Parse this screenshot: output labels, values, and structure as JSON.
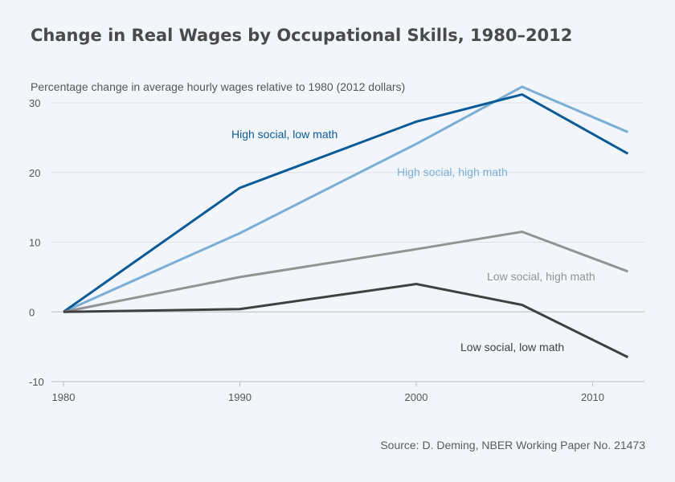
{
  "chart_data": {
    "type": "line",
    "title": "Change in Real Wages by Occupational Skills, 1980–2012",
    "ylabel": "Percentage change in average hourly wages relative to 1980 (2012 dollars)",
    "xlabel": "",
    "source": "Source: D. Deming, NBER Working Paper No. 21473",
    "x": [
      1980,
      1990,
      2000,
      2006,
      2012
    ],
    "xlim": [
      1980,
      2013
    ],
    "ylim": [
      -10,
      30
    ],
    "xticks": [
      1980,
      1990,
      2000,
      2010
    ],
    "yticks": [
      -10,
      0,
      10,
      20,
      30
    ],
    "grid": true,
    "series": [
      {
        "name": "High social, high math",
        "values": [
          0,
          11.3,
          24.1,
          32.3,
          25.8
        ],
        "color": "#7aaed4"
      },
      {
        "name": "High social, low math",
        "values": [
          0,
          17.8,
          27.3,
          31.2,
          22.7
        ],
        "color": "#0b5a98"
      },
      {
        "name": "Low social, high math",
        "values": [
          0,
          5.0,
          9.0,
          11.5,
          5.8
        ],
        "color": "#939393"
      },
      {
        "name": "Low social, low math",
        "values": [
          0,
          0.4,
          4.0,
          1.0,
          -6.5
        ],
        "color": "#404040"
      }
    ]
  }
}
